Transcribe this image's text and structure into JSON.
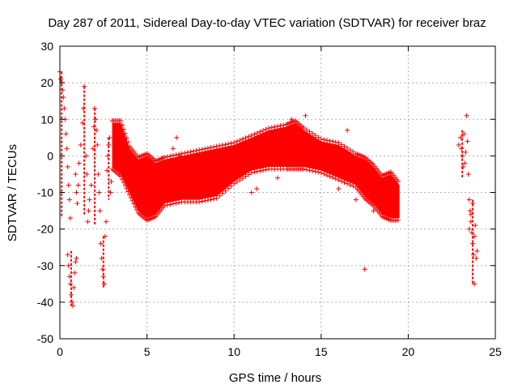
{
  "chart_data": {
    "type": "scatter",
    "title": "Day 287 of 2011, Sidereal Day-to-day VTEC variation (SDTVAR) for receiver braz",
    "xlabel": "GPS time / hours",
    "ylabel": "SDTVAR / TECUs",
    "xlim": [
      0,
      25
    ],
    "ylim": [
      -50,
      30
    ],
    "xticks": [
      0,
      5,
      10,
      15,
      20,
      25
    ],
    "yticks": [
      -50,
      -40,
      -30,
      -20,
      -10,
      0,
      10,
      20,
      30
    ],
    "grid": true,
    "marker": "plus",
    "color": "#ff0000",
    "dense_band": {
      "x": [
        3.0,
        3.5,
        4.0,
        4.5,
        5.0,
        5.5,
        6.0,
        7.0,
        8.0,
        9.0,
        10.0,
        11.0,
        12.0,
        13.0,
        13.5,
        14.0,
        15.0,
        16.0,
        17.0,
        17.5,
        18.0,
        18.5,
        19.0,
        19.5
      ],
      "upper": [
        9,
        9,
        2,
        -1,
        0,
        -2,
        -1,
        0,
        1,
        2,
        3,
        5,
        7,
        8,
        9,
        7,
        4,
        3,
        0,
        -1,
        -3,
        -6,
        -5,
        -8
      ],
      "lower": [
        -3,
        -5,
        -10,
        -15,
        -17,
        -16,
        -13,
        -12,
        -12,
        -11,
        -7,
        -4,
        -3,
        -3,
        -3,
        -3,
        -4,
        -6,
        -8,
        -11,
        -13,
        -16,
        -17,
        -17
      ]
    },
    "series": [
      {
        "name": "SDTVAR",
        "points": [
          [
            0.0,
            23
          ],
          [
            0.05,
            21
          ],
          [
            0.1,
            20
          ],
          [
            0.15,
            18
          ],
          [
            0.2,
            16
          ],
          [
            0.25,
            13
          ],
          [
            0.3,
            10
          ],
          [
            0.35,
            6
          ],
          [
            0.4,
            2
          ],
          [
            0.45,
            -3
          ],
          [
            0.5,
            -8
          ],
          [
            0.55,
            -12
          ],
          [
            0.6,
            -17
          ],
          [
            0.45,
            -27
          ],
          [
            0.5,
            -30
          ],
          [
            0.55,
            -33
          ],
          [
            0.6,
            -35
          ],
          [
            0.65,
            -38
          ],
          [
            0.7,
            -40
          ],
          [
            0.75,
            -41
          ],
          [
            0.8,
            -36
          ],
          [
            0.85,
            -32
          ],
          [
            0.9,
            -29
          ],
          [
            0.95,
            -28
          ],
          [
            0.9,
            -5
          ],
          [
            0.95,
            -10
          ],
          [
            1.0,
            -13
          ],
          [
            1.05,
            -8
          ],
          [
            1.1,
            -2
          ],
          [
            1.2,
            3
          ],
          [
            1.3,
            9
          ],
          [
            1.35,
            13
          ],
          [
            1.4,
            19
          ],
          [
            1.5,
            0
          ],
          [
            1.55,
            -5
          ],
          [
            1.6,
            -18
          ],
          [
            1.65,
            -15
          ],
          [
            1.7,
            -12
          ],
          [
            1.8,
            -8
          ],
          [
            1.9,
            2
          ],
          [
            1.95,
            8
          ],
          [
            2.0,
            13
          ],
          [
            2.05,
            10
          ],
          [
            2.1,
            7
          ],
          [
            2.15,
            3
          ],
          [
            2.2,
            -5
          ],
          [
            2.25,
            -10
          ],
          [
            2.3,
            -15
          ],
          [
            2.35,
            -24
          ],
          [
            2.4,
            -28
          ],
          [
            2.45,
            -31
          ],
          [
            2.5,
            -33
          ],
          [
            2.55,
            -35
          ],
          [
            2.6,
            -22
          ],
          [
            2.65,
            -18
          ],
          [
            2.7,
            -4
          ],
          [
            2.75,
            0
          ],
          [
            2.8,
            3
          ],
          [
            2.85,
            5
          ],
          [
            2.9,
            -10
          ],
          [
            2.95,
            -7
          ],
          [
            6.5,
            2
          ],
          [
            6.7,
            5
          ],
          [
            6.9,
            0
          ],
          [
            11.0,
            -10
          ],
          [
            11.3,
            -9
          ],
          [
            12.5,
            -6
          ],
          [
            13.3,
            10
          ],
          [
            14.1,
            11
          ],
          [
            16.5,
            7
          ],
          [
            17.5,
            -31
          ],
          [
            16.0,
            -9
          ],
          [
            17.0,
            -12
          ],
          [
            18.0,
            -15
          ],
          [
            22.9,
            3
          ],
          [
            23.0,
            5
          ],
          [
            23.05,
            2
          ],
          [
            23.1,
            0
          ],
          [
            23.15,
            -3
          ],
          [
            23.2,
            6
          ],
          [
            23.25,
            -2
          ],
          [
            23.3,
            1
          ],
          [
            23.35,
            11
          ],
          [
            23.4,
            4
          ],
          [
            23.45,
            -5
          ],
          [
            23.5,
            -12
          ],
          [
            23.55,
            -15
          ],
          [
            23.6,
            -18
          ],
          [
            23.65,
            -21
          ],
          [
            23.7,
            -24
          ],
          [
            23.75,
            -27
          ],
          [
            23.8,
            -22
          ],
          [
            23.85,
            -19
          ],
          [
            23.9,
            -28
          ],
          [
            23.8,
            -35
          ],
          [
            23.7,
            -13
          ],
          [
            23.6,
            -16
          ],
          [
            23.5,
            -20
          ],
          [
            23.95,
            -26
          ]
        ]
      }
    ]
  }
}
